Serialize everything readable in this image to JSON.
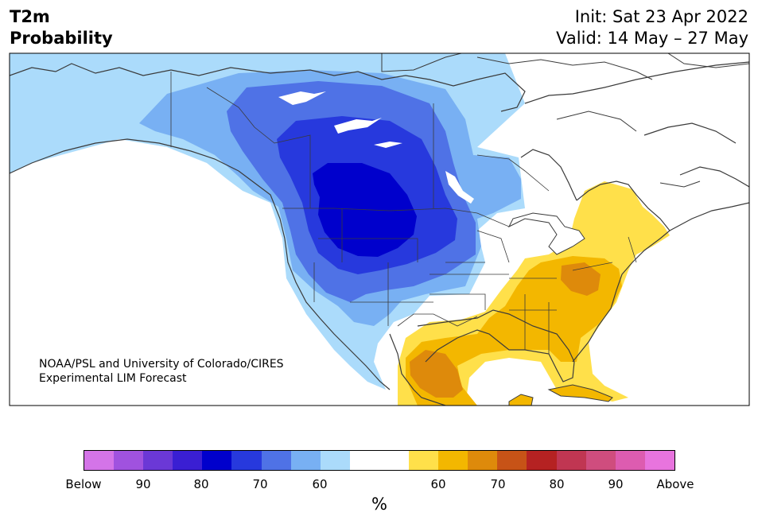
{
  "header": {
    "title_line1": "T2m",
    "title_line2": "Probability",
    "init_text": "Init: Sat 23 Apr 2022",
    "valid_text": "Valid: 14 May – 27 May"
  },
  "credit": {
    "line1": "NOAA/PSL and University of Colorado/CIRES",
    "line2": "Experimental LIM Forecast"
  },
  "colorbar": {
    "colors": [
      "#d474e8",
      "#a052df",
      "#6b38d6",
      "#3a1fd3",
      "#0000cc",
      "#2739dd",
      "#4f72e6",
      "#78b0f3",
      "#abdbfb",
      "#ffffff",
      "#ffffff",
      "#ffe04a",
      "#f3b700",
      "#de8a0b",
      "#c75317",
      "#b52222",
      "#c03652",
      "#cf4d7e",
      "#dd5cb0",
      "#e874de"
    ],
    "tick_labels": [
      "Below",
      "90",
      "80",
      "70",
      "60",
      "60",
      "70",
      "80",
      "90",
      "Above"
    ],
    "unit_label": "%"
  },
  "map_colors": {
    "below_60": "#abdbfb",
    "below_70": "#78b0f3",
    "below_80": "#4f72e6",
    "below_85": "#2739dd",
    "below_90": "#0000cc",
    "above_60": "#ffe04a",
    "above_70": "#f3b700",
    "above_80": "#de8a0b",
    "coast": "#3a3a3a"
  }
}
